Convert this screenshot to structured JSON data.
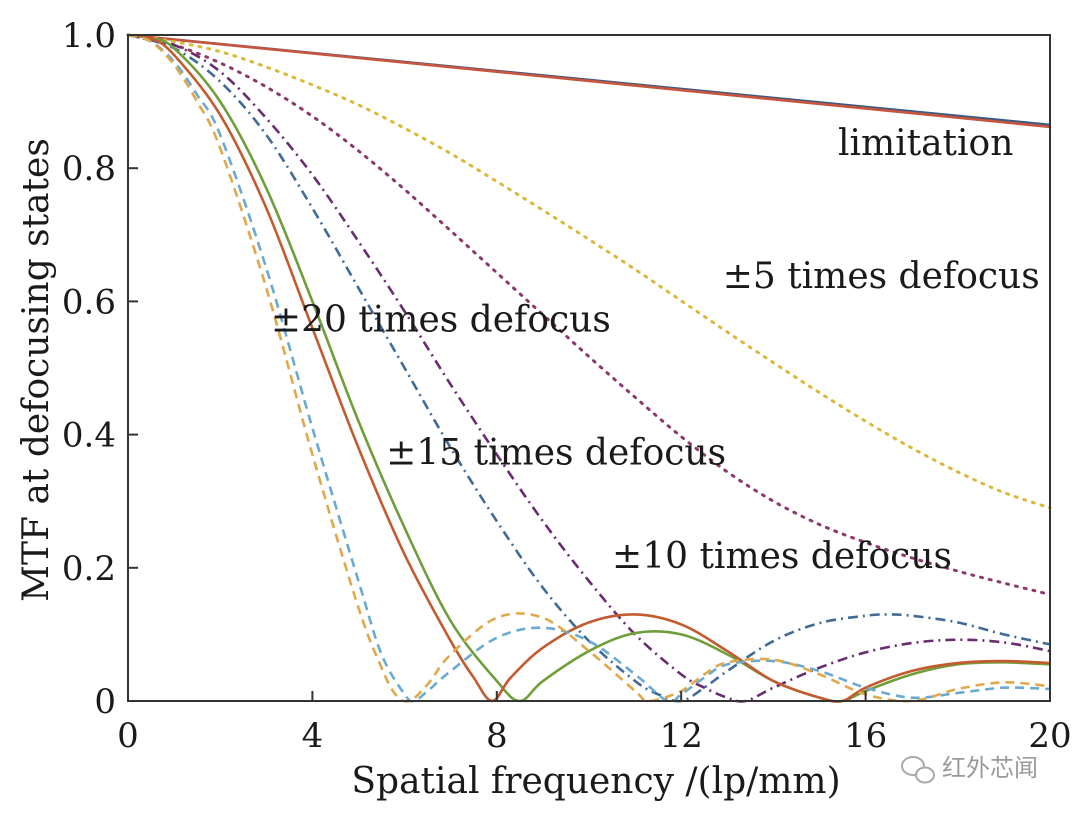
{
  "chart_data": {
    "type": "line",
    "title": "",
    "xlabel": "Spatial frequency /(lp/mm)",
    "ylabel": "MTF at defocusing states",
    "xlim": [
      0,
      20
    ],
    "ylim": [
      0,
      1.0
    ],
    "x_ticks": [
      0,
      4,
      8,
      12,
      16,
      20
    ],
    "x_tick_labels": [
      "0",
      "4",
      "8",
      "12",
      "16",
      "20"
    ],
    "y_ticks": [
      0,
      0.2,
      0.4,
      0.6,
      0.8,
      1.0
    ],
    "y_tick_labels": [
      "0",
      "0.2",
      "0.4",
      "0.6",
      "0.8",
      "1.0"
    ],
    "grid": false,
    "legend": "none",
    "annotations": [
      {
        "text": "limitation",
        "x": 15.4,
        "y": 0.82
      },
      {
        "text": "±5 times defocus",
        "x": 12.9,
        "y": 0.62
      },
      {
        "text": "±20 times defocus",
        "x": 3.1,
        "y": 0.555
      },
      {
        "text": "±15 times defocus",
        "x": 5.6,
        "y": 0.355
      },
      {
        "text": "±10 times defocus",
        "x": 10.5,
        "y": 0.2
      }
    ],
    "series": [
      {
        "name": "limitation (blue)",
        "group": "limitation",
        "color": "#3d5a80",
        "style": "solid",
        "x": [
          0,
          20
        ],
        "y": [
          1.0,
          0.865
        ]
      },
      {
        "name": "limitation (orange)",
        "group": "limitation",
        "color": "#c8553d",
        "style": "solid",
        "x": [
          0,
          20
        ],
        "y": [
          1.0,
          0.862
        ]
      },
      {
        "name": "±5 times defocus (yellow)",
        "group": "±5 times defocus",
        "color": "#d9b83a",
        "style": "dotted",
        "x": [
          0,
          1,
          2,
          3,
          4,
          5,
          6,
          7,
          8,
          9,
          10,
          11,
          12,
          13,
          14,
          15,
          16,
          17,
          18,
          19,
          20
        ],
        "y": [
          1.0,
          0.99,
          0.975,
          0.952,
          0.925,
          0.895,
          0.86,
          0.822,
          0.78,
          0.737,
          0.693,
          0.648,
          0.601,
          0.554,
          0.508,
          0.463,
          0.42,
          0.38,
          0.344,
          0.313,
          0.29
        ]
      },
      {
        "name": "±5 times defocus (purple)",
        "group": "±5 times defocus",
        "color": "#8b3a6b",
        "style": "dotted",
        "x": [
          0,
          1,
          2,
          3,
          4,
          5,
          6,
          7,
          8,
          9,
          10,
          11,
          12,
          13,
          14,
          15,
          16,
          17,
          18,
          19,
          20
        ],
        "y": [
          1.0,
          0.985,
          0.958,
          0.922,
          0.878,
          0.826,
          0.768,
          0.706,
          0.643,
          0.58,
          0.517,
          0.456,
          0.397,
          0.344,
          0.3,
          0.265,
          0.238,
          0.215,
          0.195,
          0.177,
          0.16
        ]
      },
      {
        "name": "±10 times defocus (blue)",
        "group": "±10 times defocus",
        "color": "#3f6b96",
        "style": "dashdot",
        "x": [
          0,
          1,
          2,
          3,
          4,
          5,
          6,
          7,
          8,
          9,
          10,
          11,
          11.5,
          12,
          12.5,
          13,
          14,
          15,
          16,
          16.5,
          17,
          18,
          19,
          20
        ],
        "y": [
          1.0,
          0.98,
          0.93,
          0.85,
          0.74,
          0.62,
          0.5,
          0.38,
          0.27,
          0.17,
          0.09,
          0.03,
          0.01,
          0.0,
          0.02,
          0.045,
          0.09,
          0.117,
          0.128,
          0.13,
          0.128,
          0.118,
          0.1,
          0.085
        ]
      },
      {
        "name": "±10 times defocus (purple)",
        "group": "±10 times defocus",
        "color": "#6a2c70",
        "style": "dashdot",
        "x": [
          0,
          1,
          2,
          3,
          4,
          5,
          6,
          7,
          8,
          9,
          10,
          11,
          12,
          12.5,
          13,
          13.4,
          14,
          15,
          16,
          17,
          18,
          19,
          20
        ],
        "y": [
          1.0,
          0.985,
          0.945,
          0.875,
          0.79,
          0.69,
          0.585,
          0.475,
          0.37,
          0.27,
          0.18,
          0.1,
          0.04,
          0.02,
          0.005,
          0.0,
          0.02,
          0.05,
          0.073,
          0.087,
          0.092,
          0.088,
          0.075
        ]
      },
      {
        "name": "±15 times defocus (green)",
        "group": "±15 times defocus",
        "color": "#6f9e3a",
        "style": "solid",
        "x": [
          0,
          0.5,
          1,
          2,
          3,
          4,
          5,
          6,
          7,
          8,
          8.5,
          9,
          10,
          11,
          12,
          13,
          14,
          15,
          15.5,
          16,
          17,
          18,
          19,
          20
        ],
        "y": [
          1.0,
          0.995,
          0.98,
          0.9,
          0.77,
          0.6,
          0.42,
          0.26,
          0.12,
          0.03,
          0.0,
          0.03,
          0.075,
          0.102,
          0.1,
          0.07,
          0.03,
          0.005,
          0.0,
          0.015,
          0.04,
          0.055,
          0.058,
          0.055
        ]
      },
      {
        "name": "±15 times defocus (orange)",
        "group": "±15 times defocus",
        "color": "#c45a2f",
        "style": "solid",
        "x": [
          0,
          0.5,
          1,
          2,
          3,
          4,
          5,
          6,
          7,
          7.5,
          7.9,
          8.3,
          9,
          10,
          11,
          12,
          13,
          14,
          15,
          15.5,
          16,
          17,
          18,
          19,
          20
        ],
        "y": [
          1.0,
          0.995,
          0.97,
          0.88,
          0.74,
          0.56,
          0.38,
          0.22,
          0.09,
          0.035,
          0.0,
          0.035,
          0.08,
          0.118,
          0.13,
          0.115,
          0.075,
          0.03,
          0.005,
          0.0,
          0.02,
          0.045,
          0.057,
          0.06,
          0.057
        ]
      },
      {
        "name": "±20 times defocus (light blue)",
        "group": "±20 times defocus",
        "color": "#6aaad0",
        "style": "dashed",
        "x": [
          0,
          0.5,
          1,
          1.5,
          2,
          3,
          4,
          5,
          5.5,
          6,
          6.2,
          6.5,
          7,
          8,
          9,
          10,
          11,
          11.7,
          12,
          12.5,
          13,
          14,
          15,
          16,
          17,
          18,
          19,
          20
        ],
        "y": [
          1.0,
          0.99,
          0.96,
          0.91,
          0.85,
          0.65,
          0.41,
          0.18,
          0.07,
          0.01,
          0.0,
          0.015,
          0.045,
          0.095,
          0.11,
          0.09,
          0.04,
          0.0,
          0.01,
          0.035,
          0.055,
          0.06,
          0.045,
          0.02,
          0.005,
          0.012,
          0.02,
          0.018
        ]
      },
      {
        "name": "±20 times defocus (light orange)",
        "group": "±20 times defocus",
        "color": "#e0a84a",
        "style": "dashed",
        "x": [
          0,
          0.5,
          1,
          1.5,
          2,
          3,
          4,
          5,
          5.5,
          5.8,
          6.1,
          6.5,
          7,
          8,
          9,
          10,
          11,
          11.3,
          12,
          12.5,
          13,
          14,
          15,
          16,
          17,
          18,
          19,
          20
        ],
        "y": [
          1.0,
          0.99,
          0.955,
          0.9,
          0.83,
          0.62,
          0.37,
          0.14,
          0.05,
          0.01,
          0.0,
          0.025,
          0.07,
          0.125,
          0.125,
          0.075,
          0.015,
          0.0,
          0.015,
          0.04,
          0.058,
          0.062,
          0.04,
          0.01,
          0.0,
          0.018,
          0.028,
          0.022
        ]
      }
    ]
  },
  "watermark": {
    "icon": "wechat-icon",
    "text": "红外芯闻"
  }
}
